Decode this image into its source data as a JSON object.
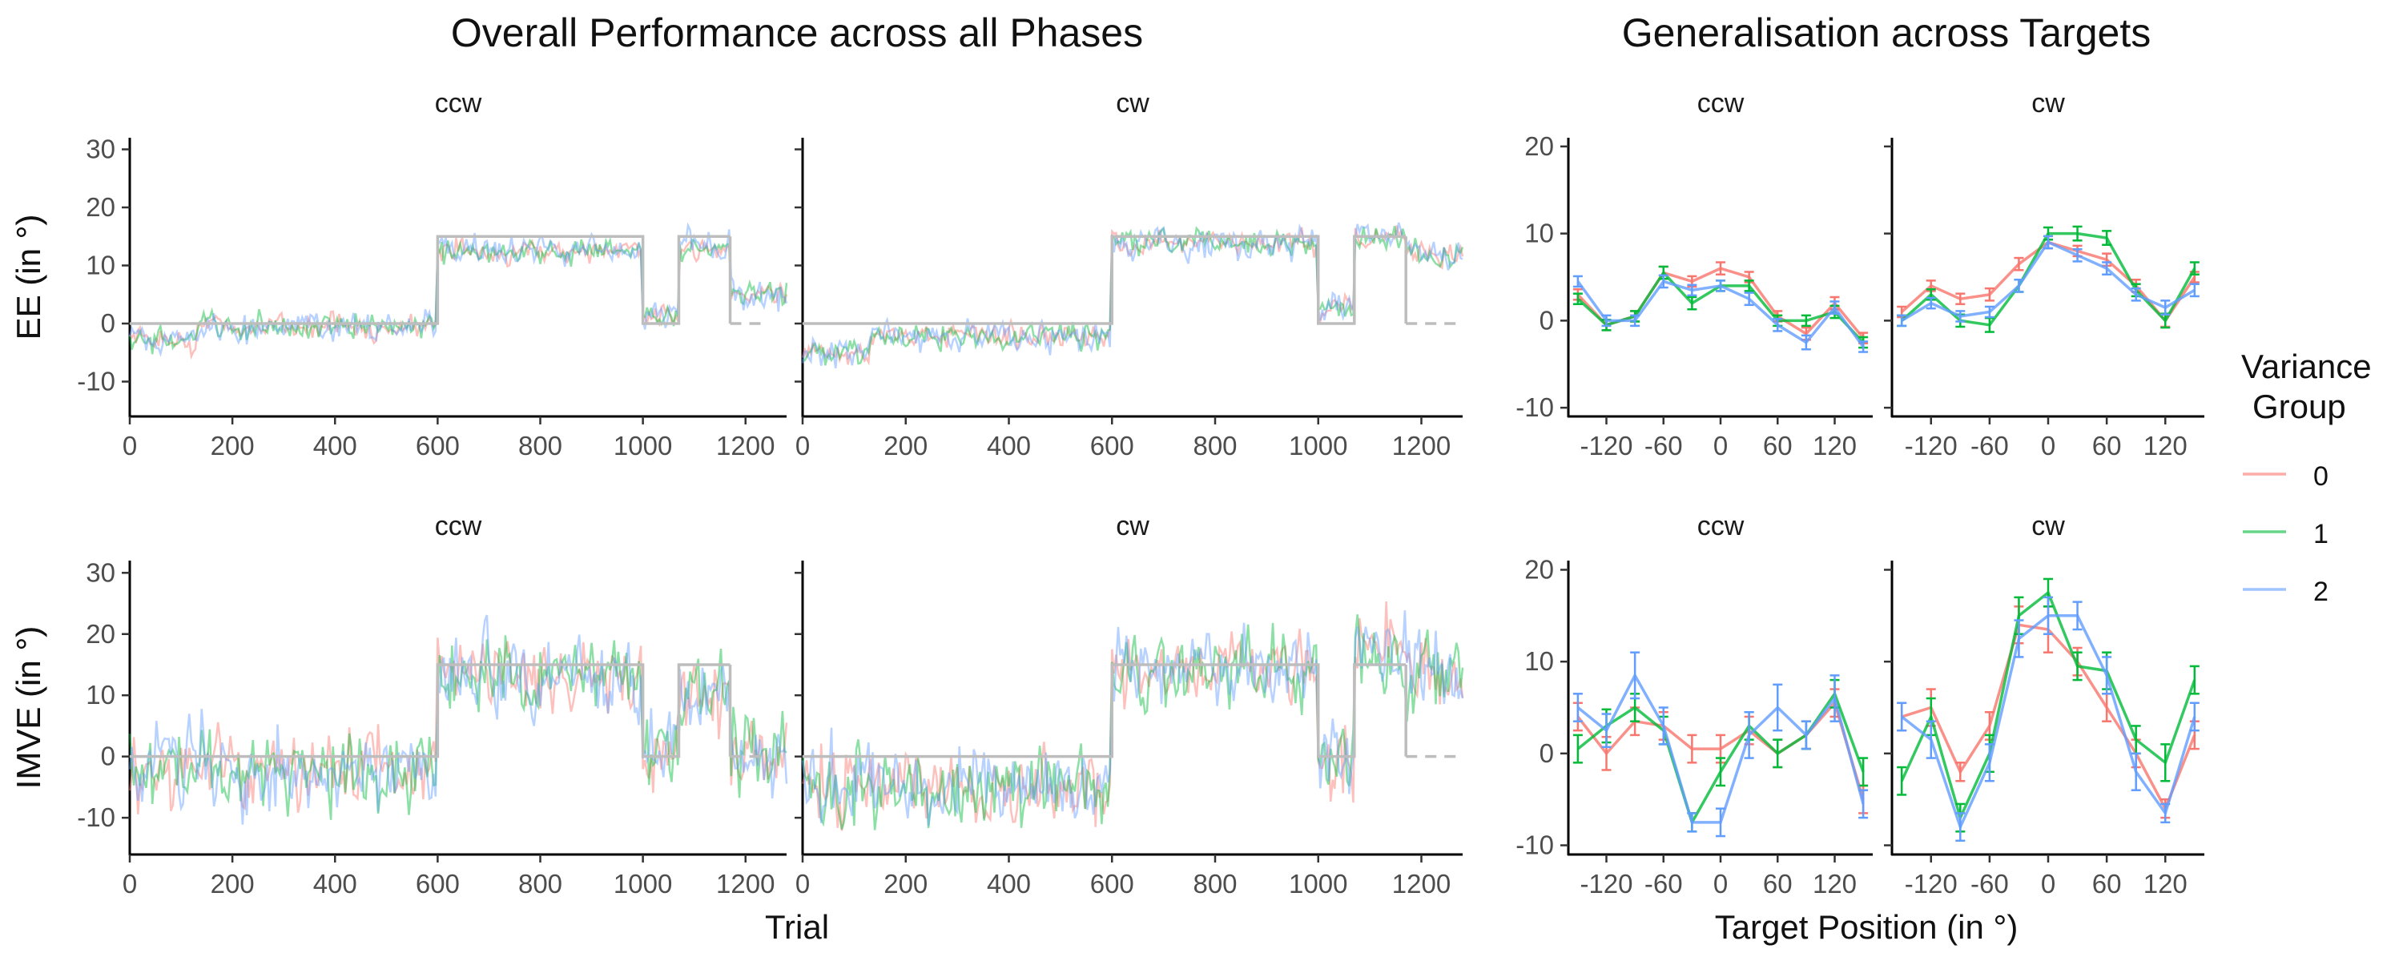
{
  "figure": {
    "left_title": "Overall Performance across all Phases",
    "right_title": "Generalisation across Targets",
    "trial_xlabel": "Trial",
    "target_xlabel": "Target Position (in °)",
    "legend": {
      "title_line1": "Variance",
      "title_line2": "Group",
      "entries": [
        {
          "label": "0",
          "color": "#F8766D"
        },
        {
          "label": "1",
          "color": "#00BA38"
        },
        {
          "label": "2",
          "color": "#619CFF"
        }
      ]
    }
  },
  "chart_data": [
    {
      "type": "line",
      "panel": "EE ccw (trials)",
      "facet": "ccw",
      "ylabel": "EE (in °)",
      "xlim": [
        0,
        1280
      ],
      "ylim": [
        -16,
        32
      ],
      "xticks": [
        0,
        200,
        400,
        600,
        800,
        1000,
        1200
      ],
      "yticks": [
        -10,
        0,
        10,
        20,
        30
      ],
      "perturbation": {
        "segments": [
          [
            0,
            600,
            0
          ],
          [
            600,
            1000,
            15
          ],
          [
            1000,
            1070,
            0
          ],
          [
            1070,
            1170,
            15
          ],
          [
            1170,
            1240,
            0
          ]
        ],
        "dashed_after": 1170
      },
      "phases": [
        [
          0,
          130,
          -3
        ],
        [
          130,
          600,
          -0.5
        ],
        [
          600,
          1000,
          12.5
        ],
        [
          1000,
          1070,
          1.5
        ],
        [
          1070,
          1170,
          13
        ],
        [
          1170,
          1280,
          5
        ]
      ],
      "noise": [
        1.8,
        2.0,
        2.4
      ],
      "series": [
        {
          "name": "0",
          "color": "#F8766D"
        },
        {
          "name": "1",
          "color": "#00BA38"
        },
        {
          "name": "2",
          "color": "#619CFF"
        }
      ]
    },
    {
      "type": "line",
      "panel": "EE cw (trials)",
      "facet": "cw",
      "ylabel": "EE (in °)",
      "xlim": [
        0,
        1280
      ],
      "ylim": [
        -16,
        32
      ],
      "xticks": [
        0,
        200,
        400,
        600,
        800,
        1000,
        1200
      ],
      "yticks": [
        -10,
        0,
        10,
        20,
        30
      ],
      "perturbation": {
        "segments": [
          [
            0,
            600,
            0
          ],
          [
            600,
            1000,
            15
          ],
          [
            1000,
            1070,
            0
          ],
          [
            1070,
            1170,
            15
          ],
          [
            1170,
            1280,
            0
          ]
        ],
        "dashed_after": 1170
      },
      "phases": [
        [
          0,
          130,
          -5
        ],
        [
          130,
          600,
          -2
        ],
        [
          600,
          1000,
          14
        ],
        [
          1000,
          1070,
          3
        ],
        [
          1070,
          1170,
          15
        ],
        [
          1170,
          1280,
          12
        ]
      ],
      "noise": [
        1.8,
        2.0,
        2.4
      ],
      "series": [
        {
          "name": "0",
          "color": "#F8766D"
        },
        {
          "name": "1",
          "color": "#00BA38"
        },
        {
          "name": "2",
          "color": "#619CFF"
        }
      ]
    },
    {
      "type": "line",
      "panel": "IMVE ccw (trials)",
      "facet": "ccw",
      "ylabel": "IMVE (in °)",
      "xlim": [
        0,
        1280
      ],
      "ylim": [
        -16,
        32
      ],
      "xticks": [
        0,
        200,
        400,
        600,
        800,
        1000,
        1200
      ],
      "yticks": [
        -10,
        0,
        10,
        20,
        30
      ],
      "perturbation": {
        "segments": [
          [
            0,
            600,
            0
          ],
          [
            600,
            1000,
            15
          ],
          [
            1000,
            1070,
            0
          ],
          [
            1070,
            1170,
            15
          ],
          [
            1170,
            1240,
            0
          ]
        ],
        "dashed_after": 1170
      },
      "phases": [
        [
          0,
          600,
          -2
        ],
        [
          600,
          1000,
          13
        ],
        [
          1000,
          1070,
          2
        ],
        [
          1070,
          1170,
          10
        ],
        [
          1170,
          1280,
          1
        ]
      ],
      "noise": [
        5.5,
        5.5,
        6.0
      ],
      "series": [
        {
          "name": "0",
          "color": "#F8766D"
        },
        {
          "name": "1",
          "color": "#00BA38"
        },
        {
          "name": "2",
          "color": "#619CFF"
        }
      ]
    },
    {
      "type": "line",
      "panel": "IMVE cw (trials)",
      "facet": "cw",
      "ylabel": "IMVE (in °)",
      "xlim": [
        0,
        1280
      ],
      "ylim": [
        -16,
        32
      ],
      "xticks": [
        0,
        200,
        400,
        600,
        800,
        1000,
        1200
      ],
      "yticks": [
        -10,
        0,
        10,
        20,
        30
      ],
      "perturbation": {
        "segments": [
          [
            0,
            600,
            0
          ],
          [
            600,
            1000,
            15
          ],
          [
            1000,
            1070,
            0
          ],
          [
            1070,
            1170,
            15
          ],
          [
            1170,
            1280,
            0
          ]
        ],
        "dashed_after": 1170
      },
      "phases": [
        [
          0,
          600,
          -5
        ],
        [
          600,
          1000,
          15
        ],
        [
          1000,
          1070,
          0
        ],
        [
          1070,
          1170,
          18
        ],
        [
          1170,
          1280,
          14
        ]
      ],
      "noise": [
        5.5,
        5.5,
        6.0
      ],
      "series": [
        {
          "name": "0",
          "color": "#F8766D"
        },
        {
          "name": "1",
          "color": "#00BA38"
        },
        {
          "name": "2",
          "color": "#619CFF"
        }
      ]
    },
    {
      "type": "line",
      "panel": "EE ccw (targets)",
      "facet": "ccw",
      "xlim": [
        -160,
        160
      ],
      "ylim": [
        -11,
        21
      ],
      "xticks": [
        -120,
        -60,
        0,
        60,
        120
      ],
      "xticklabels": [
        "-120",
        "-60",
        "0",
        "60",
        "120"
      ],
      "yticks": [
        -10,
        0,
        10,
        20
      ],
      "x": [
        -150,
        -120,
        -90,
        -60,
        -30,
        0,
        30,
        60,
        90,
        120,
        150
      ],
      "series": [
        {
          "name": "0",
          "color": "#F8766D",
          "values": [
            3,
            -0.5,
            0.5,
            5.5,
            4.5,
            6,
            5,
            0.5,
            -1.5,
            2,
            -2
          ],
          "err": [
            0.6,
            0.6,
            0.6,
            0.7,
            0.6,
            0.7,
            0.6,
            0.6,
            0.7,
            0.7,
            0.6
          ]
        },
        {
          "name": "1",
          "color": "#00BA38",
          "values": [
            2.5,
            -0.5,
            0.5,
            5.5,
            2,
            4,
            4,
            0,
            0,
            1,
            -2.5
          ],
          "err": [
            0.6,
            0.6,
            0.6,
            0.7,
            0.7,
            0.6,
            0.6,
            0.6,
            0.6,
            0.7,
            0.6
          ]
        },
        {
          "name": "2",
          "color": "#619CFF",
          "values": [
            4.5,
            0,
            0,
            4.5,
            3.5,
            4,
            2.5,
            -0.5,
            -2.5,
            1.5,
            -3
          ],
          "err": [
            0.6,
            0.6,
            0.6,
            0.7,
            0.6,
            0.6,
            0.7,
            0.7,
            0.8,
            0.7,
            0.6
          ]
        }
      ]
    },
    {
      "type": "line",
      "panel": "EE cw (targets)",
      "facet": "cw",
      "xlim": [
        -160,
        160
      ],
      "ylim": [
        -11,
        21
      ],
      "xticks": [
        -120,
        -60,
        0,
        60,
        120
      ],
      "xticklabels": [
        "-120",
        "-60",
        "0",
        "60",
        "120"
      ],
      "yticks": [
        -10,
        0,
        10,
        20
      ],
      "x": [
        -150,
        -120,
        -90,
        -60,
        -30,
        0,
        30,
        60,
        90,
        120,
        150
      ],
      "series": [
        {
          "name": "0",
          "color": "#F8766D",
          "values": [
            1,
            4,
            2.5,
            3,
            6.5,
            9,
            8,
            7,
            4,
            0,
            5
          ],
          "err": [
            0.6,
            0.6,
            0.6,
            0.7,
            0.7,
            0.7,
            0.6,
            0.7,
            0.7,
            0.7,
            0.6
          ]
        },
        {
          "name": "1",
          "color": "#00BA38",
          "values": [
            0,
            3,
            0,
            -0.5,
            4,
            10,
            10,
            9.5,
            3.5,
            0,
            6
          ],
          "err": [
            0.6,
            0.6,
            0.7,
            0.8,
            0.7,
            0.7,
            0.8,
            0.8,
            0.7,
            0.8,
            0.7
          ]
        },
        {
          "name": "2",
          "color": "#619CFF",
          "values": [
            0,
            2,
            0.5,
            1,
            4,
            9,
            7.5,
            6,
            3,
            1.5,
            3.5
          ],
          "err": [
            0.6,
            0.6,
            0.6,
            0.6,
            0.7,
            0.7,
            0.7,
            0.7,
            0.7,
            0.8,
            0.7
          ]
        }
      ]
    },
    {
      "type": "line",
      "panel": "IMVE ccw (targets)",
      "facet": "ccw",
      "xlim": [
        -160,
        160
      ],
      "ylim": [
        -11,
        21
      ],
      "xticks": [
        -120,
        -60,
        0,
        60,
        120
      ],
      "xticklabels": [
        "-120",
        "-60",
        "0",
        "60",
        "120"
      ],
      "yticks": [
        -10,
        0,
        10,
        20
      ],
      "x": [
        -150,
        -120,
        -90,
        -60,
        -30,
        0,
        30,
        60,
        90,
        120,
        150
      ],
      "series": [
        {
          "name": "0",
          "color": "#F8766D",
          "values": [
            4,
            0,
            3.5,
            3,
            0.5,
            0.5,
            2.5,
            0,
            2,
            5.5,
            -5
          ],
          "err": [
            1.5,
            1.8,
            1.5,
            1.5,
            1.5,
            1.5,
            1.5,
            1.5,
            1.5,
            1.5,
            1.5
          ]
        },
        {
          "name": "1",
          "color": "#00BA38",
          "values": [
            0.5,
            3,
            5,
            2.5,
            -7.5,
            -2,
            3,
            0,
            2,
            6.5,
            -2
          ],
          "err": [
            1.5,
            1.8,
            1.5,
            1.5,
            1,
            1.5,
            1.5,
            1.5,
            1.5,
            1.5,
            1.5
          ]
        },
        {
          "name": "2",
          "color": "#619CFF",
          "values": [
            5,
            2.5,
            8.5,
            3,
            -7.5,
            -7.5,
            2,
            5,
            2,
            6,
            -5.5
          ],
          "err": [
            1.5,
            1.8,
            2.5,
            2,
            1,
            1.5,
            2.5,
            2.5,
            1.5,
            2.5,
            1.5
          ]
        }
      ]
    },
    {
      "type": "line",
      "panel": "IMVE cw (targets)",
      "facet": "cw",
      "xlim": [
        -160,
        160
      ],
      "ylim": [
        -11,
        21
      ],
      "xticks": [
        -120,
        -60,
        0,
        60,
        120
      ],
      "xticklabels": [
        "-120",
        "-60",
        "0",
        "60",
        "120"
      ],
      "yticks": [
        -10,
        0,
        10,
        20
      ],
      "x": [
        -150,
        -120,
        -90,
        -60,
        -30,
        0,
        30,
        60,
        90,
        120,
        150
      ],
      "series": [
        {
          "name": "0",
          "color": "#F8766D",
          "values": [
            4,
            5,
            -2,
            3,
            14,
            13.5,
            10,
            5,
            0,
            -6,
            2
          ],
          "err": [
            1.5,
            2,
            1,
            1.5,
            2,
            2.5,
            1.5,
            1.5,
            1.5,
            1,
            1.5
          ]
        },
        {
          "name": "1",
          "color": "#00BA38",
          "values": [
            -3,
            4,
            -7,
            0,
            15,
            17.5,
            9.5,
            9,
            1.5,
            -1,
            8
          ],
          "err": [
            1.5,
            2,
            1.5,
            2,
            2,
            1.5,
            1.5,
            2,
            1.5,
            2,
            1.5
          ]
        },
        {
          "name": "2",
          "color": "#619CFF",
          "values": [
            4,
            1.5,
            -8,
            -1,
            12.5,
            15,
            15,
            8.5,
            -2,
            -6.5,
            4
          ],
          "err": [
            1.5,
            2,
            1.5,
            2,
            2,
            2,
            1.5,
            2,
            2,
            1,
            1.5
          ]
        }
      ]
    }
  ]
}
